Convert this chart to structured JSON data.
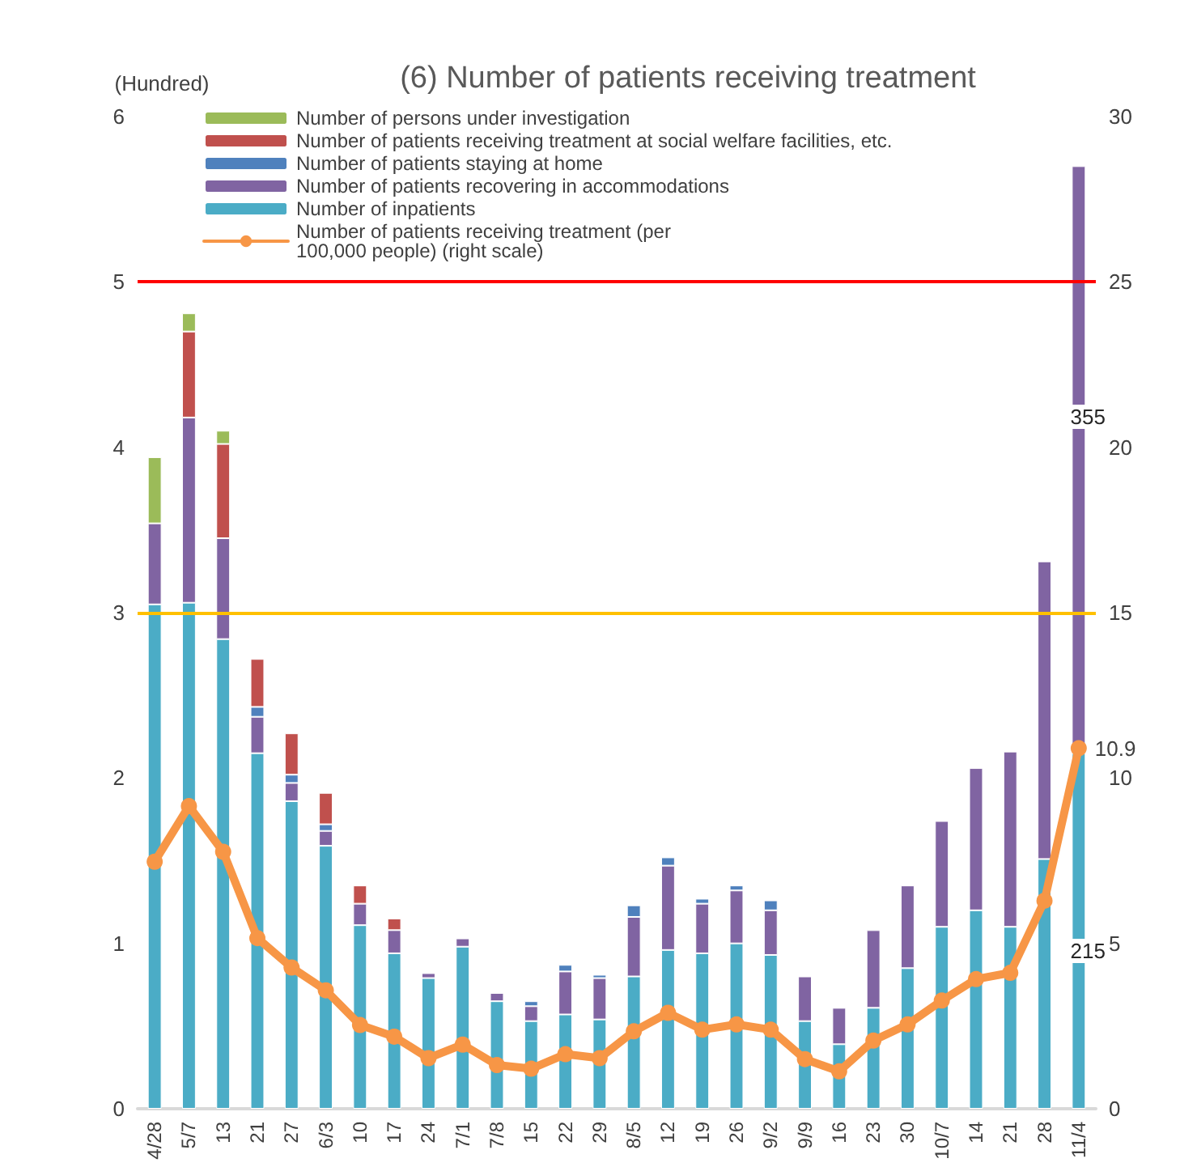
{
  "chart_data": {
    "type": "bar",
    "title": "(6) Number of patients receiving treatment",
    "ylabel": "(Hundred)",
    "stacked": true,
    "categories": [
      "4/28",
      "5/7",
      "13",
      "21",
      "27",
      "6/3",
      "10",
      "17",
      "24",
      "7/1",
      "7/8",
      "15",
      "22",
      "29",
      "8/5",
      "12",
      "19",
      "26",
      "9/2",
      "9/9",
      "16",
      "23",
      "30",
      "10/7",
      "14",
      "21",
      "28",
      "11/4"
    ],
    "series": [
      {
        "name": "Number of inpatients",
        "color": "#4bacc6",
        "values": [
          3.05,
          3.06,
          2.84,
          2.15,
          1.86,
          1.59,
          1.11,
          0.94,
          0.79,
          0.98,
          0.65,
          0.53,
          0.57,
          0.54,
          0.8,
          0.96,
          0.94,
          1.0,
          0.93,
          0.53,
          0.39,
          0.61,
          0.85,
          1.1,
          1.2,
          1.1,
          1.51,
          2.15
        ]
      },
      {
        "name": "Number of patients recovering in accommodations",
        "color": "#8064a2",
        "values": [
          0.49,
          1.12,
          0.61,
          0.22,
          0.11,
          0.09,
          0.13,
          0.14,
          0.03,
          0.05,
          0.05,
          0.09,
          0.26,
          0.25,
          0.36,
          0.51,
          0.3,
          0.32,
          0.27,
          0.27,
          0.22,
          0.47,
          0.5,
          0.64,
          0.86,
          1.06,
          1.8,
          3.55
        ]
      },
      {
        "name": "Number of patients staying at home",
        "color": "#4f81bd",
        "values": [
          null,
          null,
          null,
          0.06,
          0.05,
          0.04,
          null,
          null,
          null,
          null,
          null,
          0.03,
          0.04,
          0.02,
          0.07,
          0.05,
          0.03,
          0.03,
          0.06,
          null,
          null,
          null,
          null,
          null,
          null,
          null,
          null,
          null
        ]
      },
      {
        "name": "Number of patients receiving treatment at social welfare facilities, etc.",
        "color": "#c0504d",
        "values": [
          null,
          0.52,
          0.57,
          0.29,
          0.25,
          0.19,
          0.11,
          0.07,
          null,
          null,
          null,
          null,
          null,
          null,
          null,
          null,
          null,
          null,
          null,
          null,
          null,
          null,
          null,
          null,
          null,
          null,
          null,
          null
        ]
      },
      {
        "name": "Number of persons under investigation",
        "color": "#9bbb59",
        "values": [
          0.4,
          0.11,
          0.08,
          null,
          null,
          null,
          null,
          null,
          null,
          null,
          null,
          null,
          null,
          null,
          null,
          null,
          null,
          null,
          null,
          null,
          null,
          null,
          null,
          null,
          null,
          null,
          null,
          null
        ]
      },
      {
        "name": "Number of patients receiving treatment (per 100,000 people) (right scale)",
        "type": "line",
        "axis": "y2",
        "color": "#f79646",
        "values": [
          7.47,
          9.15,
          7.77,
          5.16,
          4.27,
          3.58,
          2.53,
          2.18,
          1.53,
          1.94,
          1.32,
          1.21,
          1.65,
          1.53,
          2.34,
          2.9,
          2.39,
          2.55,
          2.39,
          1.5,
          1.13,
          2.06,
          2.55,
          3.27,
          3.92,
          4.11,
          6.29,
          10.9
        ],
        "value_labels": [
          null,
          null,
          null,
          null,
          null,
          null,
          null,
          null,
          null,
          null,
          null,
          null,
          null,
          null,
          null,
          null,
          null,
          null,
          null,
          null,
          null,
          null,
          null,
          null,
          null,
          null,
          null,
          "10.9"
        ]
      }
    ],
    "ylim": [
      0,
      6
    ],
    "yticks": [
      0,
      1,
      2,
      3,
      4,
      5,
      6
    ],
    "y2lim": [
      0,
      30
    ],
    "y2ticks": [
      0,
      5,
      10,
      15,
      20,
      25,
      30
    ],
    "ref_lines": [
      {
        "axis": "y",
        "value": 5,
        "color": "#ff0000"
      },
      {
        "axis": "y2",
        "value": 15,
        "color": "#ffc000"
      }
    ],
    "annotations": [
      "355",
      "215"
    ],
    "marker": "circle",
    "grid": false,
    "legend": "top left"
  }
}
